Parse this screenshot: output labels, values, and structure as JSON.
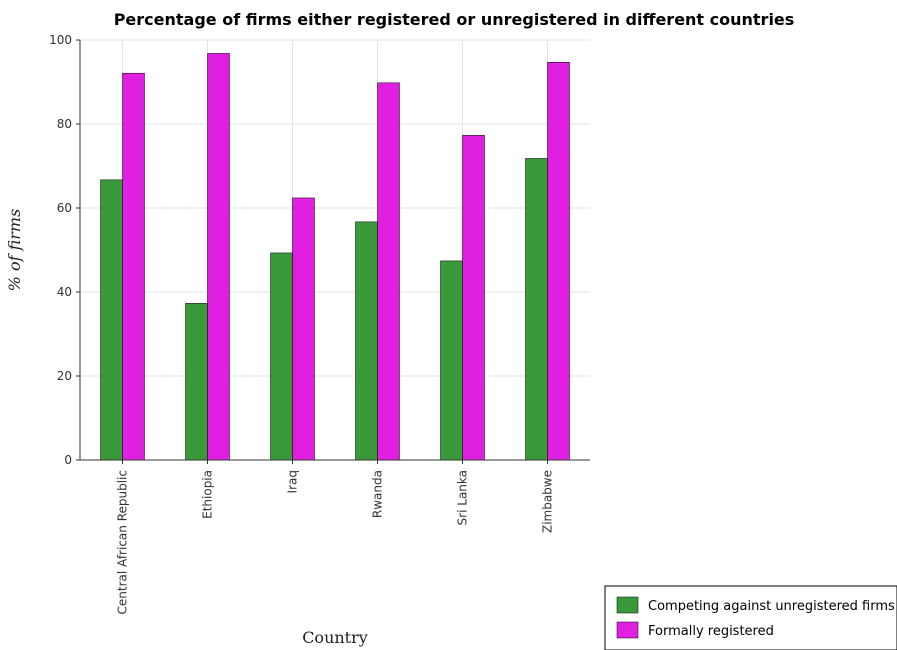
{
  "chart_data": {
    "type": "bar",
    "title": "Percentage of firms either registered or unregistered in different countries",
    "xlabel": "Country",
    "ylabel": "% of firms",
    "ylim": [
      0,
      100
    ],
    "yticks": [
      0,
      20,
      40,
      60,
      80,
      100
    ],
    "categories": [
      "Central African Republic",
      "Ethiopia",
      "Iraq",
      "Rwanda",
      "Sri Lanka",
      "Zimbabwe"
    ],
    "series": [
      {
        "name": "Competing against unregistered firms",
        "color": "#3a9a3a",
        "values": [
          66.7,
          37.3,
          49.3,
          56.7,
          47.4,
          71.8
        ]
      },
      {
        "name": "Formally registered",
        "color": "#e020e0",
        "values": [
          92.1,
          96.8,
          62.4,
          89.8,
          77.3,
          94.7
        ]
      }
    ],
    "grid": true,
    "legend_position": "bottom-right"
  }
}
